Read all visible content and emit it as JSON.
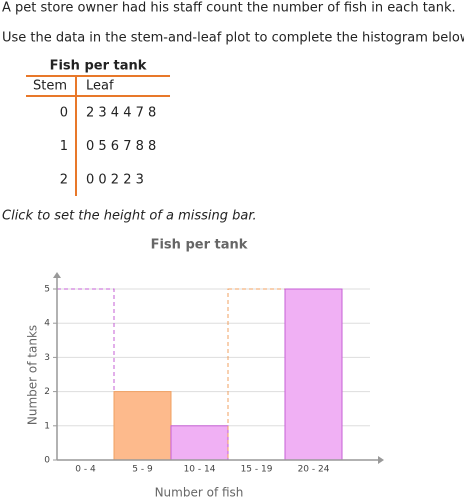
{
  "intro": "A pet store owner had his staff count the number of fish in each tank.",
  "task": "Use the data in the stem-and-leaf plot to complete the histogram below.",
  "table": {
    "title": "Fish per tank",
    "header": [
      "Stem",
      "Leaf"
    ],
    "rows": [
      [
        "0",
        "2 3 4 4 7 8"
      ],
      [
        "1",
        "0 5 6 7 8 8"
      ],
      [
        "2",
        "0 0 2 2 3"
      ]
    ]
  },
  "instruction": "Click to set the height of a missing bar.",
  "chart_data": {
    "type": "bar",
    "title": "Fish per tank",
    "x_label": "Number of fish",
    "y_label": "Number of tanks",
    "categories": [
      "0 - 4",
      "5 - 9",
      "10 - 14",
      "15 - 19",
      "20 - 24"
    ],
    "values": [
      null,
      2,
      1,
      null,
      5
    ],
    "colors": [
      "#c65fd6",
      "#f0a060",
      "#c65fd6",
      "#f0a060",
      "#c65fd6"
    ],
    "fills": [
      "#f0b0f4",
      "#fdba8c",
      "#f0b0f4",
      "#fdba8c",
      "#f0b0f4"
    ],
    "ylim": [
      0,
      5
    ],
    "yticks": [
      0,
      1,
      2,
      3,
      4,
      5
    ],
    "grid": true
  }
}
